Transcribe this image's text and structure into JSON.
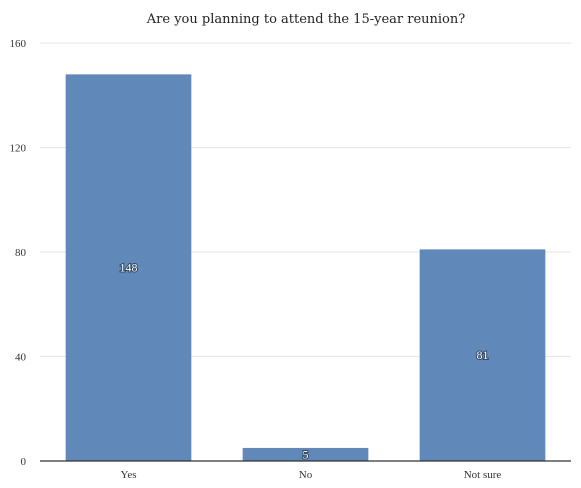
{
  "chart_data": {
    "type": "bar",
    "title": "Are you planning to attend the 15-year reunion?",
    "categories": [
      "Yes",
      "No",
      "Not sure"
    ],
    "values": [
      148,
      5,
      81
    ],
    "data_labels": [
      "148",
      "5",
      "81"
    ],
    "ylim": [
      0,
      160
    ],
    "yticks": [
      0,
      40,
      80,
      120,
      160
    ],
    "xlabel": "",
    "ylabel": "",
    "grid": true,
    "legend": "none",
    "bar_color": "#6088b9",
    "grid_color": "#e6e6e6",
    "axis_color": "#333333"
  }
}
